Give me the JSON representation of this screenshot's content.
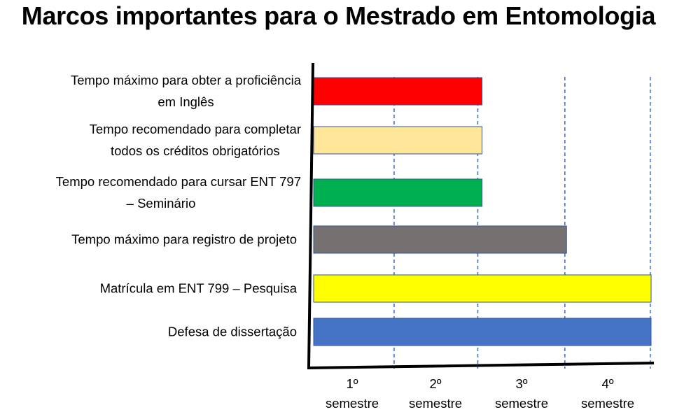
{
  "title": "Marcos importantes para o Mestrado em Entomologia",
  "chart_data": {
    "type": "bar",
    "orientation": "horizontal",
    "title": "Marcos importantes para o Mestrado em Entomologia",
    "xlabel": "",
    "ylabel": "",
    "xlim": [
      0,
      4
    ],
    "x_unit": "semestre",
    "ticks": [
      {
        "lines": [
          "1º",
          "semestre"
        ]
      },
      {
        "lines": [
          "2º",
          "semestre"
        ]
      },
      {
        "lines": [
          "3º",
          "semestre"
        ]
      },
      {
        "lines": [
          "4º",
          "semestre"
        ]
      }
    ],
    "grid": {
      "x_dashed": true,
      "positions": [
        1,
        2,
        3,
        4
      ]
    },
    "bars": [
      {
        "label_lines": [
          "Tempo máximo para obter a proficiência",
          "em Inglês"
        ],
        "value": 2,
        "color": "#FF0000"
      },
      {
        "label_lines": [
          "Tempo recomendado para completar",
          "todos os créditos obrigatórios"
        ],
        "value": 2,
        "color": "#FFE699"
      },
      {
        "label_lines": [
          "Tempo recomendado para cursar ENT 797",
          "– Seminário"
        ],
        "value": 2,
        "color": "#00B050"
      },
      {
        "label_lines": [
          "Tempo máximo para registro de projeto"
        ],
        "value": 3,
        "color": "#767171"
      },
      {
        "label_lines": [
          "Matrícula em ENT 799 – Pesquisa"
        ],
        "value": 4,
        "color": "#FFFF00"
      },
      {
        "label_lines": [
          "Defesa de dissertação"
        ],
        "value": 4,
        "color": "#4472C4"
      }
    ],
    "colors": {
      "axis": "#000000",
      "gridline": "#4472C4",
      "bar_border": "#2F5597"
    }
  }
}
